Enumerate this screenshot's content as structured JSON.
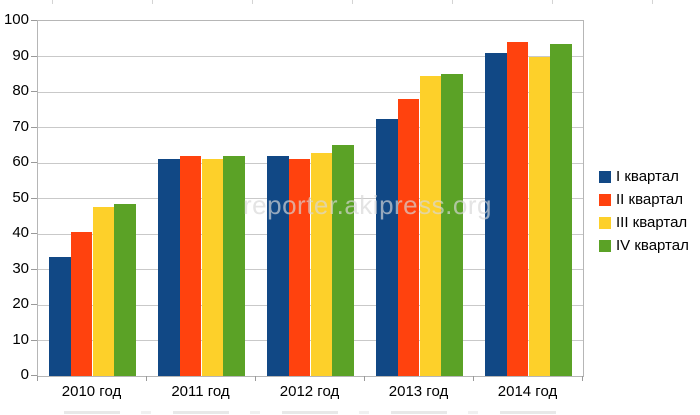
{
  "chart_data": {
    "type": "bar",
    "title": "",
    "xlabel": "",
    "ylabel": "",
    "categories": [
      "2010 год",
      "2011 год",
      "2012 год",
      "2013 год",
      "2014 год"
    ],
    "series": [
      {
        "name": "I квартал",
        "color": "#114885",
        "values": [
          33.5,
          61.0,
          62.0,
          72.5,
          91.0
        ]
      },
      {
        "name": "II квартал",
        "color": "#ff420e",
        "values": [
          40.5,
          62.0,
          61.2,
          78.0,
          94.0
        ]
      },
      {
        "name": "III квартал",
        "color": "#fdd02a",
        "values": [
          47.5,
          61.2,
          62.7,
          84.5,
          90.0
        ]
      },
      {
        "name": "IV квартал",
        "color": "#5ba226",
        "values": [
          48.5,
          62.0,
          65.0,
          85.0,
          93.5
        ]
      }
    ],
    "ylim": [
      0,
      100
    ],
    "yticks": [
      0,
      10,
      20,
      30,
      40,
      50,
      60,
      70,
      80,
      90,
      100
    ],
    "grid": true,
    "legend_position": "right"
  },
  "watermark": {
    "text": "reporter.akipress.org",
    "color": "#d7d7d7"
  }
}
